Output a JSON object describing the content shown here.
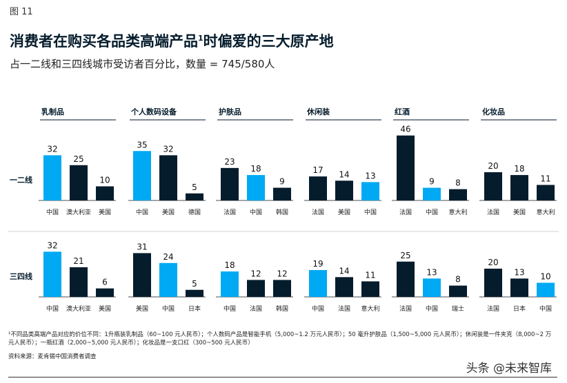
{
  "figure_label": "图 11",
  "title": "消费者在购买各品类高端产品",
  "title_sup": "1",
  "title_tail": "时偏爱的三大原产地",
  "subtitle": "占一二线和三四线城市受访者百分比，数量 = 745/580人",
  "footnote": "¹不同品类高端产品对应的价位不同：1升瓶装乳制品（60~100 元人民币）；个人数码产品是智能手机（5,000~1.2 万元人民币）；50 毫升护肤品（1,500~5,000 元人民币）；休闲装是一件夹克（8,000~2 万元人民币）；一瓶红酒（2,000~5,000 元人民币）；化妆品是一支口红（300~500 元人民币）",
  "source": "资料来源：麦肯锡中国消费者调查",
  "watermark": "头条 @未来智库",
  "colors": {
    "highlight": "#00a9f4",
    "dark": "#051c2c"
  },
  "chart_data": {
    "type": "bar",
    "rows": [
      "一二线",
      "三四线"
    ],
    "categories": [
      "乳制品",
      "个人数码设备",
      "护肤品",
      "休闲装",
      "红酒",
      "化妆品"
    ],
    "panels": [
      [
        {
          "labels": [
            "中国",
            "澳大利亚",
            "美国"
          ],
          "values": [
            32,
            25,
            10
          ]
        },
        {
          "labels": [
            "中国",
            "澳大利亚",
            "美国"
          ],
          "values": [
            32,
            21,
            6
          ]
        }
      ],
      [
        {
          "labels": [
            "中国",
            "美国",
            "德国"
          ],
          "values": [
            35,
            32,
            5
          ]
        },
        {
          "labels": [
            "美国",
            "中国",
            "日本"
          ],
          "values": [
            31,
            24,
            5
          ]
        }
      ],
      [
        {
          "labels": [
            "法国",
            "中国",
            "韩国"
          ],
          "values": [
            23,
            18,
            9
          ]
        },
        {
          "labels": [
            "中国",
            "法国",
            "韩国"
          ],
          "values": [
            18,
            12,
            12
          ]
        }
      ],
      [
        {
          "labels": [
            "法国",
            "美国",
            "中国"
          ],
          "values": [
            17,
            14,
            13
          ]
        },
        {
          "labels": [
            "中国",
            "法国",
            "意大利"
          ],
          "values": [
            19,
            14,
            11
          ]
        }
      ],
      [
        {
          "labels": [
            "法国",
            "中国",
            "意大利"
          ],
          "values": [
            46,
            9,
            8
          ]
        },
        {
          "labels": [
            "法国",
            "中国",
            "瑞士"
          ],
          "values": [
            25,
            13,
            8
          ]
        }
      ],
      [
        {
          "labels": [
            "法国",
            "美国",
            "意大利"
          ],
          "values": [
            20,
            18,
            11
          ]
        },
        {
          "labels": [
            "法国",
            "日本",
            "中国"
          ],
          "values": [
            20,
            13,
            10
          ]
        }
      ]
    ],
    "highlight_label": "中国"
  }
}
